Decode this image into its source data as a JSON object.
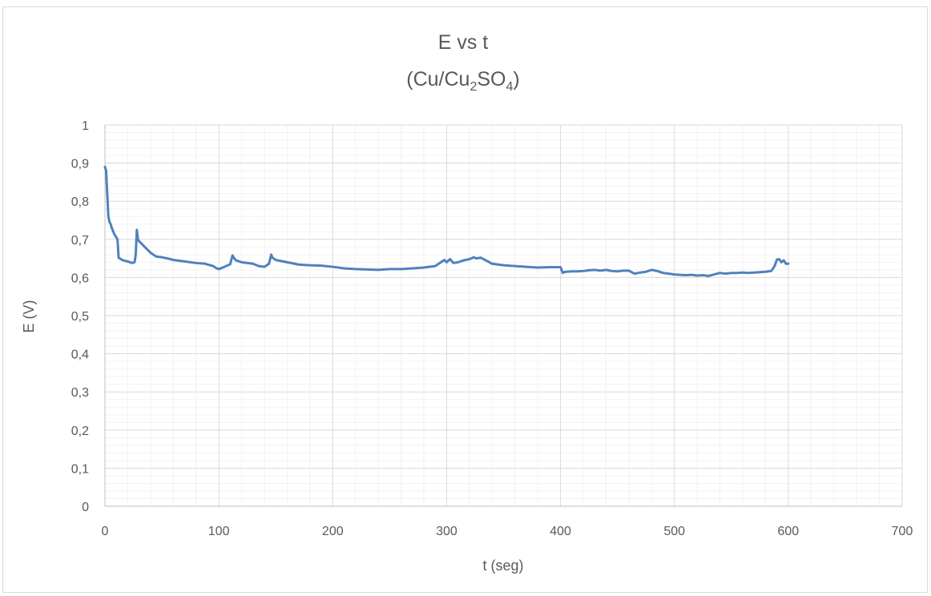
{
  "chart_data": {
    "type": "line",
    "title": "E vs t",
    "subtitle": {
      "parts": [
        {
          "text": "(Cu/Cu",
          "sub": false
        },
        {
          "text": "2",
          "sub": true
        },
        {
          "text": "SO",
          "sub": false
        },
        {
          "text": "4",
          "sub": true
        },
        {
          "text": ")",
          "sub": false
        }
      ]
    },
    "xlabel": "t (seg)",
    "ylabel": "E (V)",
    "xlim": [
      0,
      700
    ],
    "ylim": [
      0,
      1
    ],
    "x_ticks": [
      0,
      100,
      200,
      300,
      400,
      500,
      600,
      700
    ],
    "x_tick_labels": [
      "0",
      "100",
      "200",
      "300",
      "400",
      "500",
      "600",
      "700"
    ],
    "y_ticks": [
      0,
      0.1,
      0.2,
      0.3,
      0.4,
      0.5,
      0.6,
      0.7,
      0.8,
      0.9,
      1
    ],
    "y_tick_labels": [
      "0",
      "0,1",
      "0,2",
      "0,3",
      "0,4",
      "0,5",
      "0,6",
      "0,7",
      "0,8",
      "0,9",
      "1"
    ],
    "x_minor_step": 20,
    "y_minor_step": 0.02,
    "grid": true,
    "legend": "none",
    "series": [
      {
        "color": "#4f81bd",
        "x": [
          0,
          1,
          2,
          3,
          4,
          5,
          6,
          8,
          10,
          11,
          12,
          14,
          16,
          20,
          24,
          26,
          27,
          28,
          29,
          30,
          35,
          40,
          45,
          50,
          55,
          60,
          70,
          80,
          88,
          90,
          95,
          98,
          100,
          105,
          110,
          112,
          113,
          115,
          120,
          130,
          135,
          140,
          144,
          146,
          147,
          150,
          160,
          170,
          180,
          190,
          200,
          210,
          220,
          230,
          240,
          250,
          260,
          270,
          280,
          290,
          295,
          298,
          300,
          303,
          306,
          310,
          315,
          320,
          324,
          326,
          330,
          335,
          340,
          350,
          360,
          370,
          380,
          390,
          400,
          402,
          403,
          405,
          410,
          415,
          420,
          425,
          430,
          435,
          440,
          445,
          450,
          455,
          460,
          465,
          470,
          475,
          480,
          485,
          490,
          495,
          500,
          505,
          510,
          515,
          520,
          525,
          530,
          535,
          540,
          545,
          550,
          555,
          560,
          565,
          570,
          575,
          580,
          585,
          588,
          590,
          592,
          594,
          596,
          598,
          600
        ],
        "y": [
          0.89,
          0.88,
          0.82,
          0.76,
          0.745,
          0.74,
          0.73,
          0.715,
          0.705,
          0.7,
          0.652,
          0.648,
          0.645,
          0.642,
          0.638,
          0.64,
          0.66,
          0.725,
          0.7,
          0.695,
          0.68,
          0.665,
          0.655,
          0.653,
          0.65,
          0.646,
          0.642,
          0.638,
          0.636,
          0.634,
          0.63,
          0.624,
          0.622,
          0.628,
          0.635,
          0.658,
          0.652,
          0.645,
          0.64,
          0.636,
          0.63,
          0.628,
          0.636,
          0.66,
          0.652,
          0.646,
          0.64,
          0.634,
          0.632,
          0.631,
          0.628,
          0.624,
          0.622,
          0.621,
          0.62,
          0.622,
          0.622,
          0.624,
          0.626,
          0.63,
          0.64,
          0.646,
          0.64,
          0.648,
          0.638,
          0.64,
          0.645,
          0.648,
          0.653,
          0.65,
          0.652,
          0.644,
          0.636,
          0.632,
          0.63,
          0.628,
          0.626,
          0.627,
          0.627,
          0.612,
          0.614,
          0.615,
          0.616,
          0.616,
          0.617,
          0.619,
          0.62,
          0.618,
          0.62,
          0.617,
          0.616,
          0.618,
          0.618,
          0.61,
          0.613,
          0.615,
          0.62,
          0.617,
          0.612,
          0.61,
          0.608,
          0.607,
          0.606,
          0.607,
          0.605,
          0.606,
          0.604,
          0.608,
          0.612,
          0.61,
          0.612,
          0.612,
          0.613,
          0.612,
          0.613,
          0.614,
          0.615,
          0.617,
          0.63,
          0.647,
          0.648,
          0.64,
          0.645,
          0.636,
          0.636
        ]
      }
    ]
  }
}
